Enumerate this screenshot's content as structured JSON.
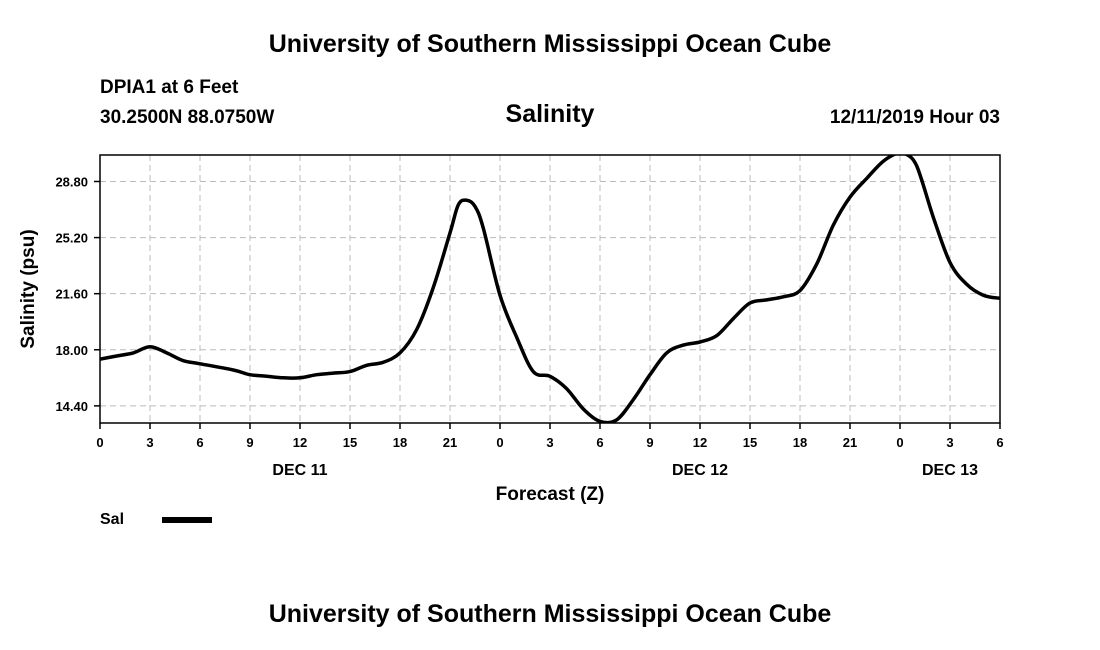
{
  "header": {
    "title": "University of Southern Mississippi Ocean Cube",
    "station": "DPIA1 at 6 Feet",
    "coords": "30.2500N 88.0750W",
    "variable": "Salinity",
    "datetime": "12/11/2019 Hour 03"
  },
  "footer": {
    "title": "University of Southern Mississippi Ocean Cube"
  },
  "colors": {
    "line": "#000000",
    "grid": "#bbbbbb",
    "frame": "#000000"
  },
  "chart_data": {
    "type": "line",
    "title": "Salinity",
    "xlabel": "Forecast (Z)",
    "ylabel": "Salinity (psu)",
    "xlim": [
      0,
      54
    ],
    "ylim": [
      13.3,
      30.5
    ],
    "xticks": [
      0,
      3,
      6,
      9,
      12,
      15,
      18,
      21,
      24,
      27,
      30,
      33,
      36,
      39,
      42,
      45,
      48,
      51,
      54
    ],
    "xtick_labels": [
      "0",
      "3",
      "6",
      "9",
      "12",
      "15",
      "18",
      "21",
      "0",
      "3",
      "6",
      "9",
      "12",
      "15",
      "18",
      "21",
      "0",
      "3",
      "6"
    ],
    "yticks": [
      14.4,
      18.0,
      21.6,
      25.2,
      28.8
    ],
    "ytick_labels": [
      "14.40",
      "18.00",
      "21.60",
      "25.20",
      "28.80"
    ],
    "day_labels": [
      {
        "label": "DEC 11",
        "x": 12
      },
      {
        "label": "DEC 12",
        "x": 36
      },
      {
        "label": "DEC 13",
        "x": 51
      }
    ],
    "grid": true,
    "legend": {
      "position": "bottom-left",
      "entries": [
        "Sal"
      ]
    },
    "series": [
      {
        "name": "Sal",
        "x": [
          0,
          1,
          2,
          3,
          4,
          5,
          6,
          8,
          9,
          10,
          11,
          12,
          13,
          14,
          15,
          16,
          17,
          18,
          19,
          20,
          21,
          21.5,
          22,
          22.5,
          23,
          24,
          25,
          26,
          27,
          28,
          29,
          30,
          31,
          32,
          33,
          34,
          35,
          36,
          37,
          38,
          39,
          40,
          41,
          42,
          43,
          44,
          45,
          46,
          47,
          48,
          48.3,
          49,
          50,
          51,
          52,
          53,
          54
        ],
        "values": [
          17.4,
          17.6,
          17.8,
          18.2,
          17.8,
          17.3,
          17.1,
          16.7,
          16.4,
          16.3,
          16.2,
          16.2,
          16.4,
          16.5,
          16.6,
          17.0,
          17.2,
          17.8,
          19.3,
          22.0,
          25.5,
          27.3,
          27.6,
          27.2,
          25.8,
          21.5,
          18.8,
          16.6,
          16.3,
          15.5,
          14.2,
          13.4,
          13.5,
          14.8,
          16.4,
          17.8,
          18.3,
          18.5,
          18.9,
          20.0,
          21.0,
          21.2,
          21.4,
          21.8,
          23.5,
          26.0,
          27.8,
          29.0,
          30.1,
          30.7,
          30.6,
          29.8,
          26.5,
          23.6,
          22.2,
          21.5,
          21.3
        ]
      }
    ]
  }
}
